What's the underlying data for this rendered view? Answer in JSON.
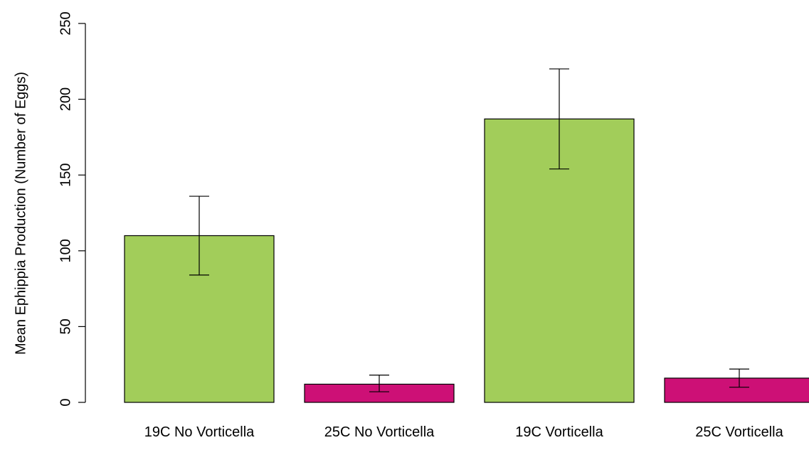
{
  "chart_data": {
    "type": "bar",
    "title": "",
    "xlabel": "",
    "ylabel": "Mean Ephippia Production (Number of Eggs)",
    "ylim": [
      0,
      250
    ],
    "yticks": [
      0,
      50,
      100,
      150,
      200,
      250
    ],
    "grid": false,
    "legend": "none",
    "categories": [
      "19C No Vorticella",
      "25C No Vorticella",
      "19C Vorticella",
      "25C Vorticella"
    ],
    "values": [
      110,
      12,
      187,
      16
    ],
    "error_bars": [
      {
        "low": 84,
        "high": 136
      },
      {
        "low": 7,
        "high": 18
      },
      {
        "low": 154,
        "high": 220
      },
      {
        "low": 10,
        "high": 22
      }
    ],
    "colors": [
      "#a2cd5a",
      "#cd1076",
      "#a2cd5a",
      "#cd1076"
    ],
    "bar_border_color": "#000000",
    "error_bar_color": "#000000"
  }
}
